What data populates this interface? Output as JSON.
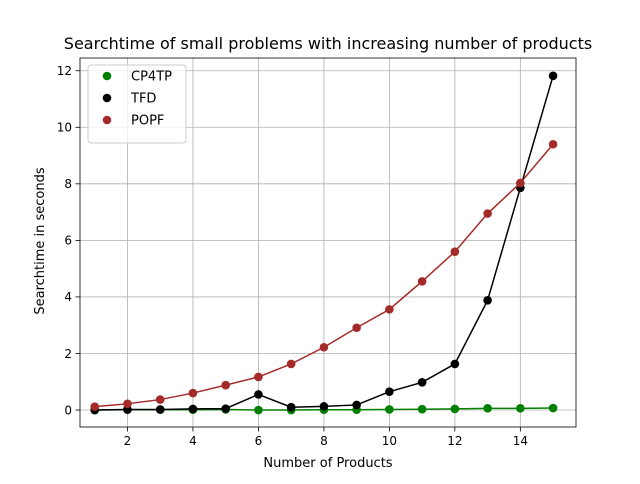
{
  "chart_data": {
    "type": "line",
    "title": "Searchtime of small problems with increasing number of products",
    "xlabel": "Number of Products",
    "ylabel": "Searchtime in seconds",
    "xlim": [
      0.55,
      15.7
    ],
    "ylim": [
      -0.6,
      12.45
    ],
    "xticks": [
      2,
      4,
      6,
      8,
      10,
      12,
      14
    ],
    "yticks": [
      0,
      2,
      4,
      6,
      8,
      10,
      12
    ],
    "grid": true,
    "legend_position": "top-left",
    "x": [
      1,
      2,
      3,
      4,
      5,
      6,
      7,
      8,
      9,
      10,
      11,
      12,
      13,
      14,
      15
    ],
    "series": [
      {
        "name": "CP4TP",
        "color": "#008000",
        "values": [
          0.0,
          0.01,
          0.01,
          0.01,
          0.02,
          0.0,
          0.0,
          0.01,
          0.01,
          0.02,
          0.03,
          0.04,
          0.06,
          0.06,
          0.07
        ]
      },
      {
        "name": "TFD",
        "color": "#000000",
        "values": [
          0.0,
          0.02,
          0.02,
          0.04,
          0.05,
          0.55,
          0.1,
          0.13,
          0.18,
          0.65,
          0.98,
          1.63,
          3.88,
          7.86,
          11.82
        ]
      },
      {
        "name": "POPF",
        "color": "#a52a2a",
        "values": [
          0.12,
          0.22,
          0.37,
          0.6,
          0.88,
          1.17,
          1.63,
          2.22,
          2.91,
          3.56,
          4.55,
          5.6,
          6.95,
          8.03,
          9.4
        ]
      }
    ]
  }
}
